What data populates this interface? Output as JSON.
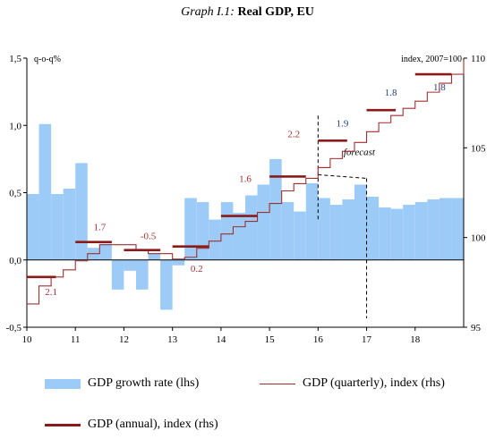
{
  "title": {
    "prefix": "Graph I.1:",
    "main": "Real GDP, EU"
  },
  "colors": {
    "bars": "#9DCBF8",
    "quarterly_line": "#A03030",
    "annual_line": "#8B1A1A",
    "labels_early": "#A03030",
    "labels_late": "#1F3D7A"
  },
  "chart_data": {
    "type": "bar+line",
    "left_axis": {
      "label": "q-o-q%",
      "ylim": [
        -0.5,
        1.5
      ],
      "ticks": [
        "1,5",
        "1,0",
        "0,5",
        "0,0",
        "-0,5"
      ],
      "tick_values": [
        1.5,
        1.0,
        0.5,
        0.0,
        -0.5
      ]
    },
    "right_axis": {
      "label": "index, 2007=100",
      "ylim": [
        95,
        110
      ],
      "ticks": [
        "110",
        "105",
        "100",
        "95"
      ],
      "tick_values": [
        110,
        105,
        100,
        95
      ]
    },
    "x_axis": {
      "ticks": [
        "10",
        "11",
        "12",
        "13",
        "14",
        "15",
        "16",
        "17",
        "18"
      ],
      "tick_values": [
        10,
        11,
        12,
        13,
        14,
        15,
        16,
        17,
        18
      ],
      "xlim": [
        10,
        19
      ]
    },
    "forecast_label": "forecast",
    "forecast_start_quarterly": 16.0,
    "forecast_start_annual": 17.0,
    "bar_series": {
      "name": "GDP growth rate (lhs)",
      "x": [
        10.0,
        10.25,
        10.5,
        10.75,
        11.0,
        11.25,
        11.5,
        11.75,
        12.0,
        12.25,
        12.5,
        12.75,
        13.0,
        13.25,
        13.5,
        13.75,
        14.0,
        14.25,
        14.5,
        14.75,
        15.0,
        15.25,
        15.5,
        15.75,
        16.0,
        16.25,
        16.5,
        16.75,
        17.0,
        17.25,
        17.5,
        17.75,
        18.0,
        18.25,
        18.5,
        18.75
      ],
      "values": [
        0.49,
        1.01,
        0.49,
        0.53,
        0.72,
        0.09,
        0.12,
        -0.22,
        -0.08,
        -0.22,
        0.05,
        -0.37,
        -0.04,
        0.46,
        0.43,
        0.3,
        0.43,
        0.35,
        0.48,
        0.56,
        0.75,
        0.43,
        0.36,
        0.57,
        0.46,
        0.41,
        0.45,
        0.56,
        0.47,
        0.39,
        0.38,
        0.41,
        0.43,
        0.45,
        0.46,
        0.46
      ]
    },
    "quarterly_series": {
      "name": "GDP (quarterly), index (rhs)",
      "x": [
        10.0,
        10.25,
        10.5,
        10.75,
        11.0,
        11.25,
        11.5,
        11.75,
        12.0,
        12.25,
        12.5,
        12.75,
        13.0,
        13.25,
        13.5,
        13.75,
        14.0,
        14.25,
        14.5,
        14.75,
        15.0,
        15.25,
        15.5,
        15.75,
        16.0,
        16.25,
        16.5,
        16.75,
        17.0,
        17.25,
        17.5,
        17.75,
        18.0,
        18.25,
        18.5,
        18.75,
        19.0
      ],
      "values": [
        96.3,
        97.3,
        97.8,
        98.2,
        98.7,
        99.1,
        99.6,
        99.6,
        99.6,
        99.3,
        99.1,
        99.1,
        98.8,
        98.9,
        99.4,
        99.8,
        100.2,
        100.6,
        100.9,
        101.4,
        101.9,
        102.6,
        103.0,
        103.3,
        103.9,
        104.4,
        104.8,
        105.3,
        105.9,
        106.4,
        106.8,
        107.2,
        107.6,
        108.1,
        108.6,
        109.1,
        109.9
      ]
    },
    "annual_series": {
      "name": "GDP (annual), index (rhs)",
      "x_start": [
        10,
        11,
        12,
        13,
        14,
        15,
        16,
        17,
        18
      ],
      "x_end": [
        10.6,
        11.75,
        12.75,
        13.75,
        14.75,
        15.75,
        16.6,
        17.6,
        18.75
      ],
      "values": [
        97.8,
        99.75,
        99.3,
        99.5,
        101.2,
        103.4,
        105.4,
        107.1,
        109.1
      ]
    },
    "annual_growth_labels": [
      {
        "text": "2.1",
        "x": 10.5,
        "y": 96.8,
        "color_key": "labels_early"
      },
      {
        "text": "1.7",
        "x": 11.5,
        "y": 100.4,
        "color_key": "labels_early"
      },
      {
        "text": "-0.5",
        "x": 12.5,
        "y": 99.9,
        "color_key": "labels_early"
      },
      {
        "text": "0.2",
        "x": 13.5,
        "y": 98.1,
        "color_key": "labels_early"
      },
      {
        "text": "1.6",
        "x": 14.5,
        "y": 103.1,
        "color_key": "labels_early"
      },
      {
        "text": "2.2",
        "x": 15.5,
        "y": 105.6,
        "color_key": "labels_early"
      },
      {
        "text": "1.9",
        "x": 16.5,
        "y": 106.2,
        "color_key": "labels_late"
      },
      {
        "text": "1.8",
        "x": 17.5,
        "y": 107.9,
        "color_key": "labels_late"
      },
      {
        "text": "1.8",
        "x": 18.5,
        "y": 108.2,
        "color_key": "labels_late"
      }
    ]
  },
  "legend": {
    "bars": "GDP growth rate (lhs)",
    "quarterly": "GDP (quarterly), index (rhs)",
    "annual": "GDP (annual), index (rhs)"
  }
}
